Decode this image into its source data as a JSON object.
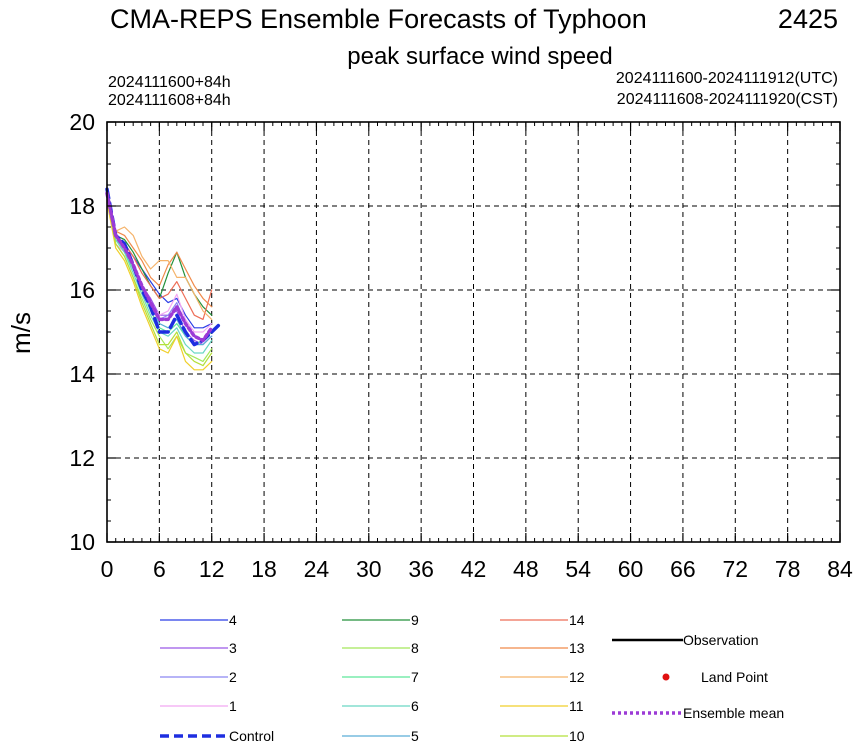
{
  "chart_data": {
    "type": "line",
    "title": "CMA-REPS Ensemble Forecasts of Typhoon",
    "typhoon_id": "2425",
    "subtitle": "peak surface wind speed",
    "info_left": [
      "2024111600+84h",
      "2024111608+84h"
    ],
    "info_right": [
      "2024111600-2024111912(UTC)",
      "2024111608-2024111920(CST)"
    ],
    "ylabel": "m/s",
    "xlabel": "",
    "xlim": [
      0,
      84
    ],
    "ylim": [
      10,
      20
    ],
    "x_ticks": [
      0,
      6,
      12,
      18,
      24,
      30,
      36,
      42,
      48,
      54,
      60,
      66,
      72,
      78,
      84
    ],
    "y_ticks": [
      10,
      12,
      14,
      16,
      18,
      20
    ],
    "grid": true,
    "legend_position": "bottom",
    "series": [
      {
        "name": "4",
        "color": "#2b3ee6",
        "x": [
          0,
          1,
          2,
          3,
          4,
          5,
          6,
          7,
          8,
          9,
          10,
          11,
          12
        ],
        "values": [
          18.3,
          17.3,
          17.1,
          16.8,
          16.5,
          16.2,
          15.9,
          15.7,
          15.8,
          15.4,
          15.1,
          15.1,
          15.2
        ]
      },
      {
        "name": "3",
        "color": "#9a59e8",
        "x": [
          0,
          1,
          2,
          3,
          4,
          5,
          6,
          7,
          8,
          9,
          10,
          11,
          12
        ],
        "values": [
          18.4,
          17.2,
          17.0,
          16.6,
          16.1,
          15.8,
          15.4,
          15.4,
          15.5,
          15.0,
          14.8,
          14.7,
          14.9
        ]
      },
      {
        "name": "2",
        "color": "#8c86f2",
        "x": [
          0,
          1,
          2,
          3,
          4,
          5,
          6,
          7,
          8,
          9,
          10,
          11,
          12
        ],
        "values": [
          18.3,
          17.2,
          16.9,
          16.5,
          16.0,
          15.6,
          15.3,
          15.4,
          15.7,
          15.2,
          14.9,
          14.8,
          15.0
        ]
      },
      {
        "name": "1",
        "color": "#f2a6f2",
        "x": [
          0,
          1,
          2,
          3,
          4,
          5,
          6,
          7,
          8,
          9,
          10,
          11,
          12
        ],
        "values": [
          18.2,
          17.1,
          16.9,
          16.5,
          16.0,
          15.7,
          15.4,
          15.5,
          15.9,
          15.3,
          15.0,
          15.0,
          15.2
        ]
      },
      {
        "name": "9",
        "color": "#23913a",
        "x": [
          0,
          1,
          2,
          3,
          4,
          5,
          6,
          7,
          8,
          9,
          10,
          11,
          12
        ],
        "values": [
          18.3,
          17.3,
          17.2,
          16.9,
          16.5,
          16.1,
          15.8,
          16.4,
          16.9,
          16.3,
          15.9,
          15.6,
          15.4
        ]
      },
      {
        "name": "8",
        "color": "#a5e85a",
        "x": [
          0,
          1,
          2,
          3,
          4,
          5,
          6,
          7,
          8,
          9,
          10,
          11,
          12
        ],
        "values": [
          18.2,
          17.1,
          16.8,
          16.3,
          15.8,
          15.3,
          14.9,
          14.6,
          14.9,
          14.5,
          14.4,
          14.3,
          14.6
        ]
      },
      {
        "name": "7",
        "color": "#5ee69b",
        "x": [
          0,
          1,
          2,
          3,
          4,
          5,
          6,
          7,
          8,
          9,
          10,
          11,
          12
        ],
        "values": [
          18.3,
          17.2,
          16.9,
          16.5,
          16.0,
          15.5,
          15.1,
          15.0,
          15.2,
          14.9,
          14.7,
          14.8,
          15.0
        ]
      },
      {
        "name": "6",
        "color": "#6ad6c4",
        "x": [
          0,
          1,
          2,
          3,
          4,
          5,
          6,
          7,
          8,
          9,
          10,
          11,
          12
        ],
        "values": [
          18.2,
          17.2,
          16.9,
          16.4,
          15.9,
          15.4,
          15.0,
          14.9,
          15.1,
          14.7,
          14.5,
          14.5,
          14.8
        ]
      },
      {
        "name": "5",
        "color": "#5aaed6",
        "x": [
          0,
          1,
          2,
          3,
          4,
          5,
          6,
          7,
          8,
          9,
          10,
          11,
          12
        ],
        "values": [
          18.3,
          17.3,
          17.0,
          16.6,
          16.1,
          15.7,
          15.2,
          15.1,
          15.3,
          14.9,
          14.7,
          14.7,
          14.9
        ]
      },
      {
        "name": "14",
        "color": "#ee6e57",
        "x": [
          0,
          1,
          2,
          3,
          4,
          5,
          6,
          7,
          8,
          9,
          10,
          11,
          12
        ],
        "values": [
          18.3,
          17.3,
          17.1,
          16.8,
          16.4,
          16.1,
          15.8,
          15.9,
          16.2,
          15.8,
          15.4,
          15.3,
          16.0
        ]
      },
      {
        "name": "13",
        "color": "#f08a4a",
        "x": [
          0,
          1,
          2,
          3,
          4,
          5,
          6,
          7,
          8,
          9,
          10,
          11,
          12
        ],
        "values": [
          18.4,
          17.4,
          17.3,
          17.0,
          16.7,
          16.3,
          16.1,
          16.6,
          16.9,
          16.5,
          16.1,
          15.8,
          15.6
        ]
      },
      {
        "name": "12",
        "color": "#f5b36a",
        "x": [
          0,
          1,
          2,
          3,
          4,
          5,
          6,
          7,
          8,
          9,
          10,
          11,
          12
        ],
        "values": [
          18.4,
          17.4,
          17.5,
          17.3,
          16.8,
          16.5,
          16.7,
          16.7,
          16.3,
          16.3,
          15.9,
          15.5,
          15.3
        ]
      },
      {
        "name": "11",
        "color": "#f0cf2a",
        "x": [
          0,
          1,
          2,
          3,
          4,
          5,
          6,
          7,
          8,
          9,
          10,
          11,
          12
        ],
        "values": [
          18.1,
          17.0,
          16.7,
          16.2,
          15.6,
          15.1,
          14.6,
          14.5,
          14.9,
          14.3,
          14.1,
          14.1,
          14.3
        ]
      },
      {
        "name": "10",
        "color": "#b5e03a",
        "x": [
          0,
          1,
          2,
          3,
          4,
          5,
          6,
          7,
          8,
          9,
          10,
          11,
          12
        ],
        "values": [
          18.2,
          17.1,
          16.8,
          16.3,
          15.7,
          15.2,
          14.7,
          14.7,
          15.0,
          14.5,
          14.3,
          14.2,
          14.5
        ]
      },
      {
        "name": "Control",
        "color": "#1e2ee0",
        "x": [
          0,
          1,
          2,
          3,
          4,
          5,
          6,
          7,
          8,
          9,
          10,
          11,
          12,
          13
        ],
        "values": [
          18.4,
          17.3,
          17.1,
          16.6,
          16.0,
          15.6,
          15.0,
          15.0,
          15.4,
          15.0,
          14.7,
          14.8,
          15.0,
          15.2
        ]
      },
      {
        "name": "Ensemble mean",
        "color": "#9c3ad6",
        "x": [
          0,
          1,
          2,
          3,
          4,
          5,
          6,
          7,
          8,
          9,
          10,
          11,
          12
        ],
        "values": [
          18.3,
          17.3,
          17.0,
          16.6,
          16.1,
          15.7,
          15.3,
          15.3,
          15.6,
          15.2,
          14.9,
          14.8,
          15.1
        ]
      }
    ],
    "observation": [],
    "land_points": []
  },
  "legend": {
    "columns": [
      [
        "4",
        "3",
        "2",
        "1",
        "Control"
      ],
      [
        "9",
        "8",
        "7",
        "6",
        "5"
      ],
      [
        "14",
        "13",
        "12",
        "11",
        "10"
      ]
    ],
    "special": [
      {
        "label": "Observation",
        "style": "solid",
        "color": "#000000"
      },
      {
        "label": "Land Point",
        "style": "dot",
        "color": "#e01010"
      },
      {
        "label": "Ensemble mean",
        "style": "dotted",
        "color": "#9c3ad6"
      }
    ]
  }
}
